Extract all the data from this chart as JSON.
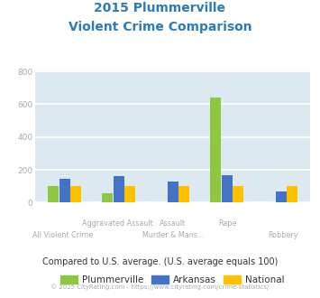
{
  "title_line1": "2015 Plummerville",
  "title_line2": "Violent Crime Comparison",
  "title_color": "#2b7bba",
  "plummerville": [
    100,
    55,
    0,
    640,
    0
  ],
  "arkansas": [
    143,
    163,
    130,
    170,
    70
  ],
  "national": [
    100,
    100,
    100,
    100,
    100
  ],
  "colors": {
    "plummerville": "#8dc63f",
    "arkansas": "#4472c4",
    "national": "#ffc000"
  },
  "ylim": [
    0,
    800
  ],
  "yticks": [
    0,
    200,
    400,
    600,
    800
  ],
  "background_color": "#dce9f0",
  "grid_color": "#ffffff",
  "axis_label_color": "#aaaaaa",
  "top_labels": [
    "",
    "Aggravated Assault",
    "Assault",
    "Rape",
    ""
  ],
  "bottom_labels": [
    "All Violent Crime",
    "",
    "Murder & Mans...",
    "",
    "Robbery"
  ],
  "footer_text": "Compared to U.S. average. (U.S. average equals 100)",
  "footer_color": "#333333",
  "copyright_text": "© 2025 CityRating.com - https://www.cityrating.com/crime-statistics/",
  "copyright_color": "#aaaaaa",
  "legend_labels": [
    "Plummerville",
    "Arkansas",
    "National"
  ]
}
